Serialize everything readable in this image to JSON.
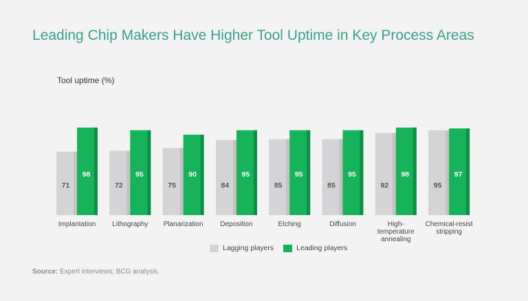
{
  "title": "Leading Chip Makers Have Higher Tool Uptime in Key Process Areas",
  "source_label": "Source:",
  "source_text": "Expert interviews; BCG analysis.",
  "chart_data": {
    "type": "bar",
    "title": "Leading Chip Makers Have Higher Tool Uptime in Key Process Areas",
    "ylabel": "Tool uptime (%)",
    "xlabel": "",
    "ylim": [
      0,
      100
    ],
    "grid": false,
    "legend_position": "bottom-center",
    "categories": [
      [
        "Implantation"
      ],
      [
        "Lithography"
      ],
      [
        "Planarization"
      ],
      [
        "Deposition"
      ],
      [
        "Etching"
      ],
      [
        "Diffusion"
      ],
      [
        "High-",
        "temperature",
        "annealing"
      ],
      [
        "Chemical-resist",
        "stripping"
      ]
    ],
    "series": [
      {
        "name": "Lagging players",
        "color": "#d4d4d6",
        "shade": "#c3c3c5",
        "values": [
          71,
          72,
          75,
          84,
          85,
          85,
          92,
          95
        ]
      },
      {
        "name": "Leading players",
        "color": "#16b35a",
        "shade": "#0e8f46",
        "values": [
          98,
          95,
          90,
          95,
          95,
          95,
          98,
          97
        ]
      }
    ]
  }
}
